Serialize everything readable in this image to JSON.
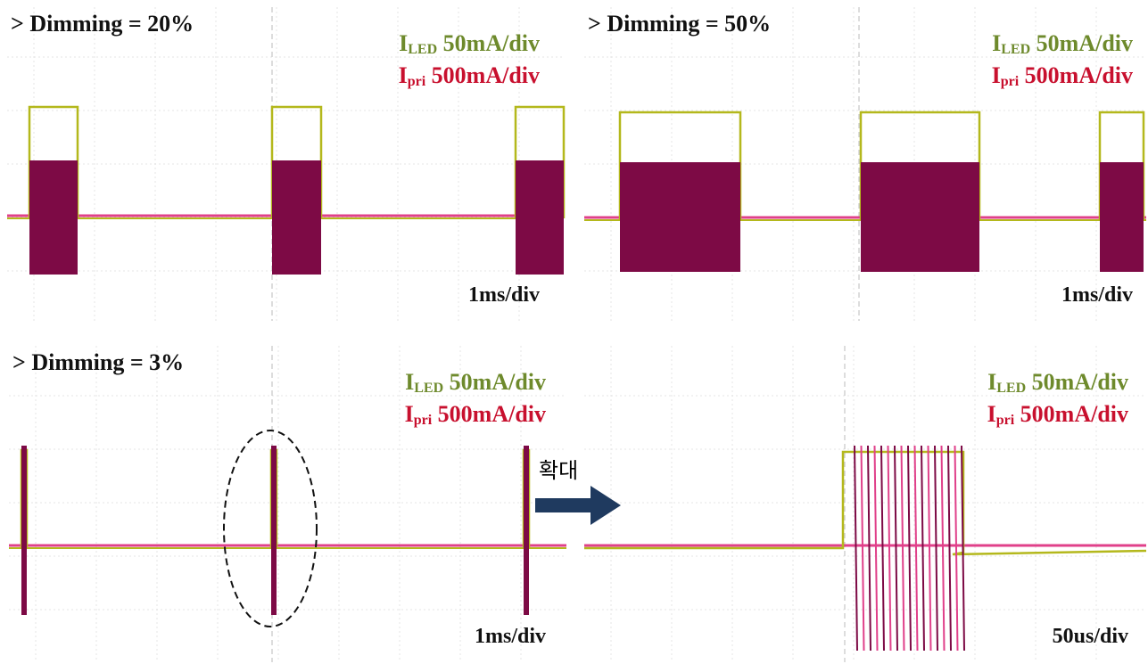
{
  "panels": [
    {
      "title": "> Dimming = 20%",
      "iled": {
        "symbol": "I",
        "sub": "LED",
        "scale": "50mA/div"
      },
      "ipri": {
        "symbol": "I",
        "sub": "pri",
        "scale": "500mA/div"
      },
      "timebase": "1ms/div"
    },
    {
      "title": "> Dimming = 50%",
      "iled": {
        "symbol": "I",
        "sub": "LED",
        "scale": "50mA/div"
      },
      "ipri": {
        "symbol": "I",
        "sub": "pri",
        "scale": "500mA/div"
      },
      "timebase": "1ms/div"
    },
    {
      "title": "> Dimming = 3%",
      "iled": {
        "symbol": "I",
        "sub": "LED",
        "scale": "50mA/div"
      },
      "ipri": {
        "symbol": "I",
        "sub": "pri",
        "scale": "500mA/div"
      },
      "timebase": "1ms/div"
    },
    {
      "iled": {
        "symbol": "I",
        "sub": "LED",
        "scale": "50mA/div"
      },
      "ipri": {
        "symbol": "I",
        "sub": "pri",
        "scale": "500mA/div"
      },
      "timebase": "50us/div"
    }
  ],
  "arrow_label": "확대"
}
